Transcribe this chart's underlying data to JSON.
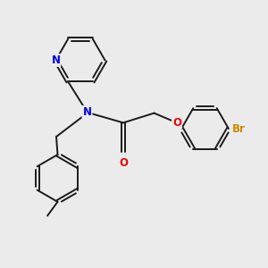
{
  "background_color": "#ebebeb",
  "bond_color": "#1a1a1a",
  "N_color": "#0000ee",
  "O_color": "#ee0000",
  "Br_color": "#cc8800",
  "figsize": [
    3.0,
    3.0
  ],
  "dpi": 100,
  "xlim": [
    0,
    10
  ],
  "ylim": [
    0,
    10
  ]
}
